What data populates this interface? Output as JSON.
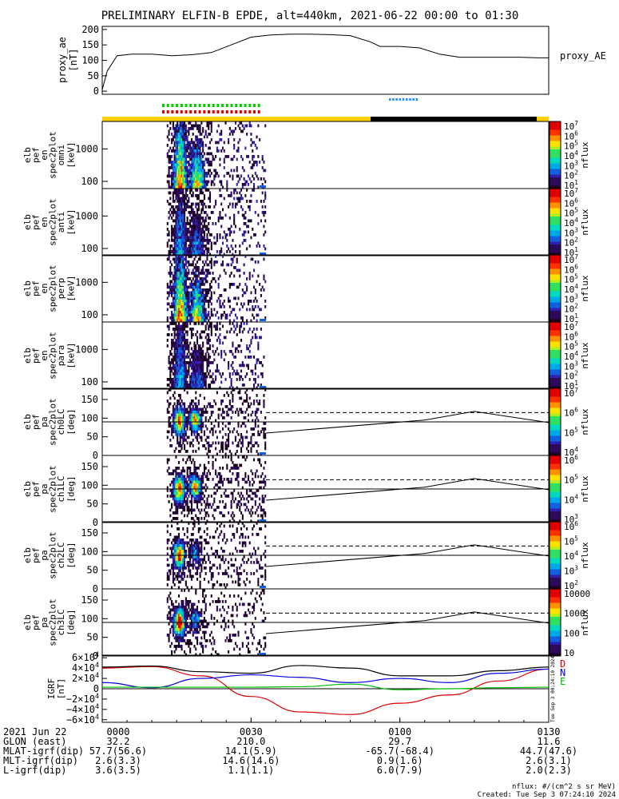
{
  "title": "PRELIMINARY ELFIN-B EPDE, alt=440km, 2021-06-22 00:00 to 01:30",
  "proxy_ae": {
    "ylabel": "proxy_ae",
    "units": "[nT]",
    "legend": "proxy_AE",
    "ylim": [
      -10,
      210
    ],
    "yticks": [
      0,
      50,
      100,
      150,
      200
    ],
    "x_minutes": [
      0,
      1,
      3,
      6,
      10,
      14,
      18,
      22,
      26,
      30,
      34,
      38,
      42,
      46,
      50,
      54,
      56,
      60,
      64,
      68,
      72,
      76,
      80,
      84,
      88,
      90
    ],
    "values": [
      5,
      65,
      115,
      120,
      120,
      115,
      118,
      125,
      150,
      175,
      182,
      185,
      185,
      183,
      180,
      160,
      145,
      145,
      140,
      120,
      110,
      110,
      110,
      110,
      108,
      108
    ]
  },
  "spectra_panels": [
    {
      "line1": "elb",
      "line2": "pef",
      "line3": "en",
      "line4": "spec2plot",
      "line5": "omni",
      "units": "[keV]",
      "yticks": [
        "1000",
        "100"
      ],
      "cbar_label": "nflux",
      "cbar_ticks": [
        "10^7",
        "10^6",
        "10^5",
        "10^4",
        "10^3",
        "10^2",
        "10^1"
      ]
    },
    {
      "line1": "elb",
      "line2": "pef",
      "line3": "en",
      "line4": "spec2plot",
      "line5": "anti",
      "units": "[keV]",
      "yticks": [
        "1000",
        "100"
      ],
      "cbar_label": "nflux",
      "cbar_ticks": [
        "10^7",
        "10^6",
        "10^5",
        "10^4",
        "10^3",
        "10^2",
        "10^1"
      ]
    },
    {
      "line1": "elb",
      "line2": "pef",
      "line3": "en",
      "line4": "spec2plot",
      "line5": "perp",
      "units": "[keV]",
      "yticks": [
        "1000",
        "100"
      ],
      "cbar_label": "nflux",
      "cbar_ticks": [
        "10^7",
        "10^6",
        "10^5",
        "10^4",
        "10^3",
        "10^2",
        "10^1"
      ]
    },
    {
      "line1": "elb",
      "line2": "pef",
      "line3": "en",
      "line4": "spec2plot",
      "line5": "para",
      "units": "[keV]",
      "yticks": [
        "1000",
        "100"
      ],
      "cbar_label": "nflux",
      "cbar_ticks": [
        "10^7",
        "10^6",
        "10^5",
        "10^4",
        "10^3",
        "10^2",
        "10^1"
      ]
    }
  ],
  "pitch_panels": [
    {
      "line1": "elb",
      "line2": "pef",
      "line3": "pa",
      "line4": "spec2plot",
      "line5": "ch0LC",
      "units": "[deg]",
      "yticks": [
        "150",
        "100",
        "50",
        "0"
      ],
      "cbar_label": "nflux",
      "cbar_ticks": [
        "10^7",
        "10^6",
        "10^5",
        "10^4"
      ]
    },
    {
      "line1": "elb",
      "line2": "pef",
      "line3": "pa",
      "line4": "spec2plot",
      "line5": "ch1LC",
      "units": "[deg]",
      "yticks": [
        "150",
        "100",
        "50",
        "0"
      ],
      "cbar_label": "nflux",
      "cbar_ticks": [
        "10^6",
        "10^5",
        "10^4",
        "10^3"
      ]
    },
    {
      "line1": "elb",
      "line2": "pef",
      "line3": "pa",
      "line4": "spec2plot",
      "line5": "ch2LC",
      "units": "[deg]",
      "yticks": [
        "150",
        "100",
        "50",
        "0"
      ],
      "cbar_label": "nflux",
      "cbar_ticks": [
        "10^6",
        "10^5",
        "10^4",
        "10^3",
        "10^2"
      ]
    },
    {
      "line1": "elb",
      "line2": "pef",
      "line3": "pa",
      "line4": "spec2plot",
      "line5": "ch3LC",
      "units": "[deg]",
      "yticks": [
        "150",
        "100",
        "50",
        "0"
      ],
      "cbar_label": "nflux",
      "cbar_ticks": [
        "10000",
        "1000",
        "100",
        "10"
      ]
    }
  ],
  "igrf": {
    "ylabel": "IGRF",
    "units": "[nT]",
    "yticks": [
      "6×10^4",
      "4×10^4",
      "2×10^4",
      "0",
      "−2×10^4",
      "−4×10^4",
      "−6×10^4"
    ],
    "legend": [
      {
        "label": "D",
        "color": "#dd0000"
      },
      {
        "label": "N",
        "color": "#0000dd"
      },
      {
        "label": "E",
        "color": "#00bb00"
      }
    ],
    "side_text": "Tue Sep 3 00:24:10 2024"
  },
  "footer": {
    "rows": [
      {
        "label": "2021 Jun 22",
        "vals": [
          "0000",
          "0030",
          "0100",
          "0130"
        ]
      },
      {
        "label": "GLON (east)",
        "vals": [
          "32.2",
          "210.0",
          "29.7",
          "11.6"
        ]
      },
      {
        "label": "MLAT-igrf(dip)",
        "vals": [
          "57.7(56.6)",
          "14.1(5.9)",
          "-65.7(-68.4)",
          "44.7(47.6)"
        ]
      },
      {
        "label": "MLT-igrf(dip)",
        "vals": [
          "2.6(3.3)",
          "14.6(14.6)",
          "0.9(1.6)",
          "2.6(3.1)"
        ]
      },
      {
        "label": "L-igrf(dip)",
        "vals": [
          "3.6(3.5)",
          "1.1(1.1)",
          "6.0(7.9)",
          "2.0(2.3)"
        ]
      }
    ],
    "units_note": "nflux: #/(cm^2 s sr MeV)",
    "created": "Created: Tue Sep  3 07:24:10 2024"
  },
  "colors": {
    "sun_bar": "#ffd000",
    "shadow_bar": "#000000",
    "green_marks": "#00cc00",
    "red_marks": "#dd0000",
    "blue_marks": "#1e90ff"
  },
  "chart_data": {
    "type": "heatmap",
    "x_range_minutes": [
      0,
      90
    ],
    "x_tick_labels": [
      "0000",
      "0030",
      "0100",
      "0130"
    ],
    "data_interval_minutes": [
      13,
      33
    ],
    "energy_ylim_keV": [
      60,
      7000
    ],
    "energy_scale": "log",
    "pitch_ylim_deg": [
      0,
      180
    ],
    "loss_cone_line_deg": [
      [
        33,
        60
      ],
      [
        65,
        95
      ],
      [
        75,
        118
      ],
      [
        90,
        88
      ]
    ],
    "antiloss_cone_dashed_deg": 115,
    "pitch_90_line_deg": 90,
    "igrf_series": [
      {
        "name": "D",
        "x": [
          0,
          10,
          20,
          30,
          40,
          50,
          60,
          70,
          80,
          90
        ],
        "values": [
          40000,
          43000,
          25000,
          -15000,
          -45000,
          -50000,
          -28000,
          -12000,
          15000,
          38000
        ]
      },
      {
        "name": "N",
        "x": [
          0,
          10,
          20,
          30,
          40,
          50,
          60,
          70,
          80,
          90
        ],
        "values": [
          12000,
          2000,
          20000,
          27000,
          22000,
          12000,
          20000,
          12000,
          30000,
          38000
        ]
      },
      {
        "name": "E",
        "x": [
          0,
          10,
          20,
          30,
          40,
          50,
          60,
          70,
          80,
          90
        ],
        "values": [
          3000,
          3000,
          3000,
          3000,
          4000,
          9000,
          -2000,
          0,
          2000,
          3000
        ]
      },
      {
        "name": "total",
        "x": [
          0,
          10,
          20,
          30,
          40,
          50,
          60,
          70,
          80,
          90
        ],
        "values": [
          42000,
          44000,
          33000,
          30000,
          45000,
          40000,
          25000,
          25000,
          35000,
          42000
        ]
      }
    ]
  }
}
